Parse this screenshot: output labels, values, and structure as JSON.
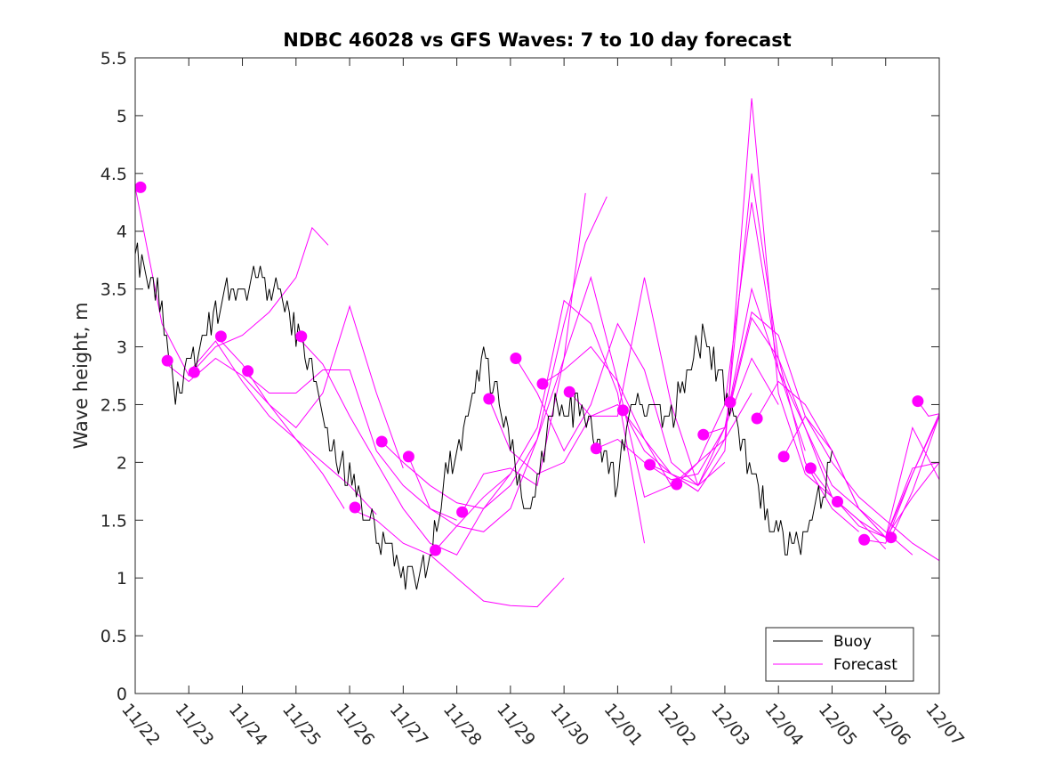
{
  "chart_data": {
    "type": "line",
    "title": "NDBC 46028 vs GFS Waves: 7 to 10 day forecast",
    "xlabel": "",
    "ylabel": "Wave height, m",
    "x_unit": "days since 11/22",
    "xlim": [
      0,
      15
    ],
    "ylim": [
      0,
      5.5
    ],
    "x_ticks": [
      0,
      1,
      2,
      3,
      4,
      5,
      6,
      7,
      8,
      9,
      10,
      11,
      12,
      13,
      14,
      15
    ],
    "x_tick_labels": [
      "11/22",
      "11/23",
      "11/24",
      "11/25",
      "11/26",
      "11/27",
      "11/28",
      "11/29",
      "11/30",
      "12/01",
      "12/02",
      "12/03",
      "12/04",
      "12/05",
      "12/06",
      "12/07"
    ],
    "y_ticks": [
      0,
      0.5,
      1,
      1.5,
      2,
      2.5,
      3,
      3.5,
      4,
      4.5,
      5,
      5.5
    ],
    "y_tick_labels": [
      "0",
      "0.5",
      "1",
      "1.5",
      "2",
      "2.5",
      "3",
      "3.5",
      "4",
      "4.5",
      "5",
      "5.5"
    ],
    "grid": false,
    "legend": {
      "position": "bottom-right",
      "entries": [
        "Buoy",
        "Forecast"
      ]
    },
    "colors": {
      "buoy": "#000000",
      "forecast": "#ff00ff",
      "axis": "#262626"
    },
    "buoy": {
      "name": "Buoy",
      "x": [
        0,
        0.25,
        0.5,
        0.75,
        1,
        1.25,
        1.5,
        1.75,
        2,
        2.25,
        2.5,
        2.75,
        3,
        3.25,
        3.5,
        3.75,
        4,
        4.25,
        4.5,
        4.75,
        5,
        5.25,
        5.5,
        5.75,
        6,
        6.25,
        6.5,
        6.75,
        7,
        7.25,
        7.5,
        7.75,
        8,
        8.25,
        8.5,
        8.75,
        9,
        9.25,
        9.5,
        9.75,
        10,
        10.25,
        10.5,
        10.75,
        11,
        11.25,
        11.5,
        11.75,
        12,
        12.25,
        12.5,
        12.75,
        13,
        13.25,
        13.5,
        13.75,
        14,
        14.25
      ],
      "y": [
        3.8,
        3.6,
        3.4,
        2.6,
        2.8,
        3.1,
        3.3,
        3.5,
        3.5,
        3.6,
        3.5,
        3.4,
        3.1,
        2.9,
        2.4,
        2.0,
        1.9,
        1.6,
        1.4,
        1.2,
        1.0,
        1.0,
        1.1,
        1.8,
        2.1,
        2.5,
        2.9,
        2.6,
        2.1,
        1.7,
        1.8,
        2.5,
        2.4,
        2.5,
        2.3,
        2.0,
        1.8,
        2.6,
        2.5,
        2.5,
        2.4,
        2.7,
        3.1,
        2.9,
        2.6,
        2.2,
        1.9,
        1.6,
        1.4,
        1.3,
        1.3,
        1.7,
        2.0,
        null,
        null,
        null,
        null,
        null
      ],
      "noise": 0.15
    },
    "series": [
      {
        "name": "Forecast",
        "x": [
          0,
          0.5,
          1,
          1.5,
          2,
          2.5,
          3,
          3.3,
          3.6
        ],
        "y": [
          4.38,
          3.2,
          2.75,
          3.0,
          3.1,
          3.3,
          3.6,
          4.03,
          3.88
        ]
      },
      {
        "name": "Forecast",
        "x": [
          0.5,
          1,
          1.5,
          2,
          2.5,
          3,
          3.5,
          3.9
        ],
        "y": [
          2.88,
          2.7,
          2.9,
          2.75,
          2.5,
          2.2,
          1.9,
          1.6
        ]
      },
      {
        "name": "Forecast",
        "x": [
          1,
          1.5,
          2,
          2.5,
          3,
          3.5,
          4,
          4.5
        ],
        "y": [
          2.78,
          3.05,
          2.7,
          2.4,
          2.2,
          2.0,
          1.8,
          1.55
        ]
      },
      {
        "name": "Forecast",
        "x": [
          1.5,
          2,
          2.5,
          3,
          3.5,
          4,
          4.5,
          5
        ],
        "y": [
          3.1,
          2.85,
          2.5,
          2.3,
          2.6,
          3.35,
          2.6,
          1.95
        ]
      },
      {
        "name": "Forecast",
        "x": [
          2,
          2.5,
          3,
          3.5,
          4,
          4.5,
          5,
          5.5,
          6
        ],
        "y": [
          2.79,
          2.6,
          2.6,
          2.8,
          2.8,
          2.1,
          1.8,
          1.6,
          1.5
        ]
      },
      {
        "name": "Forecast",
        "x": [
          3,
          3.5,
          4,
          4.5,
          5,
          5.5,
          6,
          6.5,
          7
        ],
        "y": [
          3.1,
          2.85,
          2.4,
          2.0,
          1.6,
          1.3,
          1.2,
          1.6,
          1.9
        ]
      },
      {
        "name": "Forecast",
        "x": [
          4,
          4.5,
          5,
          5.5,
          6,
          6.5,
          7,
          7.5,
          8
        ],
        "y": [
          1.6,
          1.5,
          1.3,
          1.2,
          1.0,
          0.8,
          0.76,
          0.75,
          1.0
        ]
      },
      {
        "name": "Forecast",
        "x": [
          4.6,
          5,
          5.5,
          6,
          6.5,
          7,
          7.5,
          8,
          8.4
        ],
        "y": [
          2.18,
          2.0,
          1.8,
          1.65,
          1.6,
          1.8,
          2.2,
          2.9,
          4.33
        ]
      },
      {
        "name": "Forecast",
        "x": [
          5.1,
          5.5,
          6,
          6.5,
          7,
          7.5,
          8,
          8.4,
          8.8
        ],
        "y": [
          2.05,
          1.6,
          1.45,
          1.4,
          1.6,
          2.2,
          3.2,
          3.9,
          4.3
        ]
      },
      {
        "name": "Forecast",
        "x": [
          5.6,
          6,
          6.5,
          7,
          7.5,
          8,
          8.5,
          9,
          9.5
        ],
        "y": [
          1.24,
          1.45,
          1.7,
          1.9,
          2.3,
          3.4,
          3.2,
          2.6,
          1.3
        ]
      },
      {
        "name": "Forecast",
        "x": [
          6.1,
          6.5,
          7,
          7.5,
          8,
          8.5,
          9,
          9.5,
          10
        ],
        "y": [
          1.57,
          1.9,
          1.95,
          1.8,
          2.9,
          3.6,
          2.7,
          1.7,
          1.8
        ]
      },
      {
        "name": "Forecast",
        "x": [
          6.6,
          7,
          7.5,
          8,
          8.5,
          9,
          9.5,
          10,
          10.5
        ],
        "y": [
          2.55,
          2.1,
          1.9,
          2.0,
          2.4,
          2.5,
          2.2,
          1.9,
          1.75
        ]
      },
      {
        "name": "Forecast",
        "x": [
          7.1,
          7.5,
          8,
          8.5,
          9,
          9.5,
          10,
          10.5,
          11
        ],
        "y": [
          2.9,
          2.6,
          2.1,
          2.5,
          3.2,
          2.8,
          2.0,
          1.8,
          2.0
        ]
      },
      {
        "name": "Forecast",
        "x": [
          7.6,
          8,
          8.5,
          9,
          9.5,
          10,
          10.5,
          11,
          11.5
        ],
        "y": [
          2.68,
          2.8,
          3.0,
          2.7,
          2.2,
          1.8,
          2.0,
          2.2,
          2.6
        ]
      },
      {
        "name": "Forecast",
        "x": [
          8.1,
          8.5,
          9,
          9.5,
          10,
          10.5,
          11,
          11.5,
          12
        ],
        "y": [
          2.61,
          2.4,
          2.4,
          3.6,
          2.5,
          1.8,
          2.3,
          2.9,
          2.5
        ]
      },
      {
        "name": "Forecast",
        "x": [
          8.6,
          9,
          9.5,
          10,
          10.5,
          11,
          11.5,
          12,
          12.5
        ],
        "y": [
          2.12,
          2.2,
          2.0,
          1.85,
          1.9,
          2.3,
          3.5,
          2.8,
          2.1
        ]
      },
      {
        "name": "Forecast",
        "x": [
          9.1,
          9.5,
          10,
          10.5,
          11,
          11.5,
          12,
          12.5,
          13
        ],
        "y": [
          2.45,
          2.1,
          1.9,
          1.75,
          2.1,
          5.15,
          2.6,
          1.9,
          1.7
        ]
      },
      {
        "name": "Forecast",
        "x": [
          9.6,
          10,
          10.5,
          11,
          11.5,
          12,
          12.5,
          13,
          13.5
        ],
        "y": [
          1.98,
          1.9,
          1.8,
          2.2,
          4.5,
          2.9,
          2.0,
          1.6,
          1.4
        ]
      },
      {
        "name": "Forecast",
        "x": [
          10.1,
          10.5,
          11,
          11.5,
          12,
          12.5,
          13,
          13.5,
          14
        ],
        "y": [
          1.81,
          2.0,
          2.5,
          4.25,
          2.8,
          2.3,
          1.7,
          1.5,
          1.25
        ]
      },
      {
        "name": "Forecast",
        "x": [
          10.6,
          11,
          11.5,
          12,
          12.5,
          13,
          13.5,
          14,
          14.5
        ],
        "y": [
          2.24,
          2.3,
          3.25,
          2.9,
          2.3,
          1.8,
          1.6,
          1.4,
          1.2
        ]
      },
      {
        "name": "Forecast",
        "x": [
          11.1,
          11.5,
          12,
          12.5,
          13,
          13.5,
          14,
          14.5,
          15
        ],
        "y": [
          2.52,
          3.3,
          3.1,
          2.4,
          2.0,
          1.7,
          1.5,
          1.3,
          1.15
        ]
      },
      {
        "name": "Forecast",
        "x": [
          11.6,
          12,
          12.5,
          13,
          13.5,
          14,
          14.5,
          15
        ],
        "y": [
          2.38,
          2.7,
          2.5,
          2.1,
          1.6,
          1.35,
          1.7,
          2.0
        ]
      },
      {
        "name": "Forecast",
        "x": [
          12.1,
          12.5,
          13,
          13.5,
          14,
          14.5,
          15
        ],
        "y": [
          2.05,
          2.4,
          2.1,
          1.6,
          1.35,
          1.95,
          2.0
        ]
      },
      {
        "name": "Forecast",
        "x": [
          12.6,
          13,
          13.5,
          14,
          14.5,
          15
        ],
        "y": [
          1.95,
          1.7,
          1.5,
          1.35,
          1.9,
          2.4
        ]
      },
      {
        "name": "Forecast",
        "x": [
          13.1,
          13.5,
          14,
          14.5,
          15
        ],
        "y": [
          1.66,
          1.45,
          1.35,
          2.3,
          1.85
        ]
      },
      {
        "name": "Forecast",
        "x": [
          13.6,
          14,
          14.5,
          15
        ],
        "y": [
          1.33,
          1.3,
          1.9,
          2.42
        ]
      },
      {
        "name": "Forecast",
        "x": [
          14.1,
          14.5,
          15
        ],
        "y": [
          1.35,
          1.75,
          2.4
        ]
      },
      {
        "name": "Forecast",
        "x": [
          14.6,
          14.8,
          15
        ],
        "y": [
          2.53,
          2.4,
          2.42
        ]
      }
    ],
    "forecast_markers": {
      "x": [
        0.1,
        0.6,
        1.1,
        1.6,
        2.1,
        3.1,
        4.1,
        4.6,
        5.1,
        5.6,
        6.1,
        6.6,
        7.1,
        7.6,
        8.1,
        8.6,
        9.1,
        9.6,
        10.1,
        10.6,
        11.1,
        11.6,
        12.1,
        12.6,
        13.1,
        13.6,
        14.1,
        14.6
      ],
      "y": [
        4.38,
        2.88,
        2.78,
        3.09,
        2.79,
        3.09,
        1.61,
        2.18,
        2.05,
        1.24,
        1.57,
        2.55,
        2.9,
        2.68,
        2.61,
        2.12,
        2.45,
        1.98,
        1.81,
        2.24,
        2.52,
        2.38,
        2.05,
        1.95,
        1.66,
        1.33,
        1.35,
        2.53
      ]
    }
  }
}
